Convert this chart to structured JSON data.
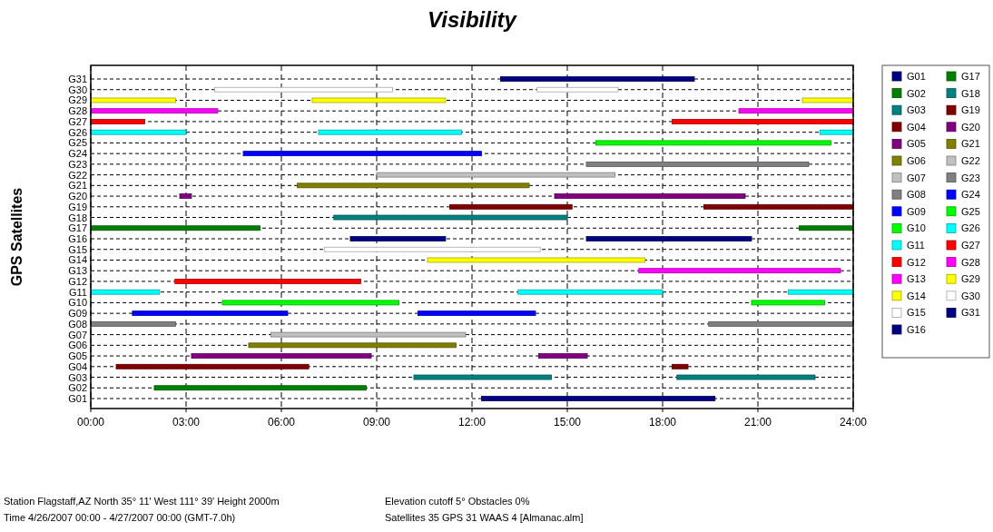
{
  "chart_data": {
    "type": "bar",
    "orientation": "horizontal",
    "title": "Visibility",
    "ylabel": "GPS Satellites",
    "categories": [
      "G31",
      "G30",
      "G29",
      "G28",
      "G27",
      "G26",
      "G25",
      "G24",
      "G23",
      "G22",
      "G21",
      "G20",
      "G19",
      "G18",
      "G17",
      "G16",
      "G15",
      "G14",
      "G13",
      "G12",
      "G11",
      "G10",
      "G09",
      "G08",
      "G07",
      "G06",
      "G05",
      "G04",
      "G03",
      "G02",
      "G01"
    ],
    "series": [
      {
        "name": "G01",
        "color": "#000080",
        "x": [
          "G01"
        ],
        "base": [
          12.3
        ],
        "values": [
          7.35
        ]
      },
      {
        "name": "G02",
        "color": "#008000",
        "x": [
          "G02"
        ],
        "base": [
          2
        ],
        "values": [
          6.67
        ]
      },
      {
        "name": "G03",
        "color": "#008080",
        "x": [
          "G03",
          "G03"
        ],
        "base": [
          10.17,
          18.45
        ],
        "values": [
          4.33,
          4.35
        ]
      },
      {
        "name": "G04",
        "color": "#800000",
        "x": [
          "G04",
          "G04"
        ],
        "base": [
          0.8,
          18.3
        ],
        "values": [
          6.06,
          0.5
        ]
      },
      {
        "name": "G05",
        "color": "#800080",
        "x": [
          "G05",
          "G05"
        ],
        "base": [
          3.17,
          14.1
        ],
        "values": [
          5.66,
          1.53
        ]
      },
      {
        "name": "G06",
        "color": "#808000",
        "x": [
          "G06"
        ],
        "base": [
          4.97
        ],
        "values": [
          6.53
        ]
      },
      {
        "name": "G07",
        "color": "#c0c0c0",
        "x": [
          "G07"
        ],
        "base": [
          5.67
        ],
        "values": [
          6.13
        ]
      },
      {
        "name": "G08",
        "color": "#808080",
        "x": [
          "G08",
          "G08"
        ],
        "base": [
          0,
          19.45
        ],
        "values": [
          2.67,
          4.55
        ]
      },
      {
        "name": "G09",
        "color": "#0000ff",
        "x": [
          "G09",
          "G09"
        ],
        "base": [
          1.31,
          10.3
        ],
        "values": [
          4.89,
          3.7
        ]
      },
      {
        "name": "G10",
        "color": "#00ff00",
        "x": [
          "G10",
          "G10"
        ],
        "base": [
          4.14,
          20.8
        ],
        "values": [
          5.56,
          2.3
        ]
      },
      {
        "name": "G11",
        "color": "#00ffff",
        "x": [
          "G11",
          "G11",
          "G11"
        ],
        "base": [
          0,
          13.45,
          21.95
        ],
        "values": [
          2.17,
          4.55,
          2.05
        ]
      },
      {
        "name": "G12",
        "color": "#ff0000",
        "x": [
          "G12"
        ],
        "base": [
          2.65
        ],
        "values": [
          5.85
        ]
      },
      {
        "name": "G13",
        "color": "#ff00ff",
        "x": [
          "G13"
        ],
        "base": [
          17.25
        ],
        "values": [
          6.35
        ]
      },
      {
        "name": "G14",
        "color": "#ffff00",
        "x": [
          "G14"
        ],
        "base": [
          10.6
        ],
        "values": [
          6.85
        ]
      },
      {
        "name": "G15",
        "color": "#ffffff",
        "x": [
          "G15"
        ],
        "base": [
          7.35
        ],
        "values": [
          6.8
        ]
      },
      {
        "name": "G16",
        "color": "#000080",
        "x": [
          "G16",
          "G16"
        ],
        "base": [
          8.17,
          15.6
        ],
        "values": [
          3,
          5.2
        ]
      },
      {
        "name": "G17",
        "color": "#008000",
        "x": [
          "G17",
          "G17"
        ],
        "base": [
          0,
          22.3
        ],
        "values": [
          5.33,
          1.7
        ]
      },
      {
        "name": "G18",
        "color": "#008080",
        "x": [
          "G18"
        ],
        "base": [
          7.65
        ],
        "values": [
          7.35
        ]
      },
      {
        "name": "G19",
        "color": "#800000",
        "x": [
          "G19",
          "G19"
        ],
        "base": [
          11.3,
          19.3
        ],
        "values": [
          3.85,
          4.7
        ]
      },
      {
        "name": "G20",
        "color": "#800080",
        "x": [
          "G20",
          "G20"
        ],
        "base": [
          2.8,
          14.6
        ],
        "values": [
          0.37,
          6
        ]
      },
      {
        "name": "G21",
        "color": "#808000",
        "x": [
          "G21"
        ],
        "base": [
          6.5
        ],
        "values": [
          7.3
        ]
      },
      {
        "name": "G22",
        "color": "#c0c0c0",
        "x": [
          "G22"
        ],
        "base": [
          9
        ],
        "values": [
          7.5
        ]
      },
      {
        "name": "G23",
        "color": "#808080",
        "x": [
          "G23"
        ],
        "base": [
          15.6
        ],
        "values": [
          7
        ]
      },
      {
        "name": "G24",
        "color": "#0000ff",
        "x": [
          "G24"
        ],
        "base": [
          4.8
        ],
        "values": [
          7.5
        ]
      },
      {
        "name": "G25",
        "color": "#00ff00",
        "x": [
          "G25"
        ],
        "base": [
          15.9
        ],
        "values": [
          7.4
        ]
      },
      {
        "name": "G26",
        "color": "#00ffff",
        "x": [
          "G26",
          "G26",
          "G26"
        ],
        "base": [
          0,
          7.17,
          22.95
        ],
        "values": [
          3,
          4.5,
          1.05
        ]
      },
      {
        "name": "G27",
        "color": "#ff0000",
        "x": [
          "G27",
          "G27"
        ],
        "base": [
          0,
          18.3
        ],
        "values": [
          1.7,
          5.7
        ]
      },
      {
        "name": "G28",
        "color": "#ff00ff",
        "x": [
          "G28",
          "G28"
        ],
        "base": [
          0,
          20.4
        ],
        "values": [
          4,
          3.6
        ]
      },
      {
        "name": "G29",
        "color": "#ffff00",
        "x": [
          "G29",
          "G29",
          "G29"
        ],
        "base": [
          0,
          6.97,
          22.4
        ],
        "values": [
          2.67,
          4.2,
          1.6
        ]
      },
      {
        "name": "G30",
        "color": "#ffffff",
        "x": [
          "G30",
          "G30"
        ],
        "base": [
          3.9,
          14.05
        ],
        "values": [
          5.6,
          2.55
        ]
      },
      {
        "name": "G31",
        "color": "#000080",
        "x": [
          "G31"
        ],
        "base": [
          12.9
        ],
        "values": [
          6.1
        ]
      }
    ],
    "xlim": [
      0,
      24
    ],
    "xticks": [
      {
        "value": 0,
        "label": "00:00"
      },
      {
        "value": 3,
        "label": "03:00"
      },
      {
        "value": 6,
        "label": "06:00"
      },
      {
        "value": 9,
        "label": "09:00"
      },
      {
        "value": 12,
        "label": "12:00"
      },
      {
        "value": 15,
        "label": "15:00"
      },
      {
        "value": 18,
        "label": "18:00"
      },
      {
        "value": 21,
        "label": "21:00"
      },
      {
        "value": 24,
        "label": "24:00"
      }
    ],
    "grid": true,
    "legend": "right",
    "annotations": [
      "Station Flagstaff,AZ  North 35° 11'  West 111° 39'  Height 2000m",
      "Time 4/26/2007 00:00 -  4/27/2007 00:00 (GMT-7.0h)",
      "Elevation cutoff 5°  Obstacles 0%",
      "Satellites 35  GPS 31  WAAS 4  [Almanac.alm]"
    ]
  }
}
